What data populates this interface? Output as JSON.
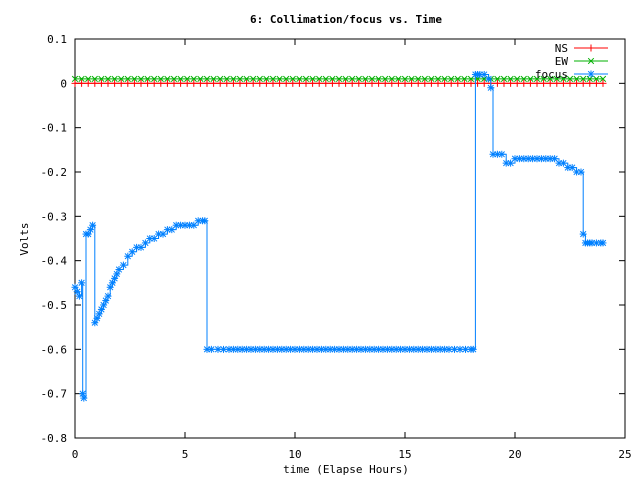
{
  "chart_data": {
    "type": "line",
    "title": "6: Collimation/focus vs. Time",
    "xlabel": "time (Elapse Hours)",
    "ylabel": "Volts",
    "xlim": [
      0,
      25
    ],
    "ylim": [
      -0.8,
      0.1
    ],
    "xticks": [
      0,
      5,
      10,
      15,
      20,
      25
    ],
    "yticks": [
      -0.8,
      -0.7,
      -0.6,
      -0.5,
      -0.4,
      -0.3,
      -0.2,
      -0.1,
      0,
      0.1
    ],
    "ytick_labels": [
      "-0.8",
      "-0.7",
      "-0.6",
      "-0.5",
      "-0.4",
      "-0.3",
      "-0.2",
      "-0.1",
      "0",
      "0.1"
    ],
    "xtick_labels": [
      "0",
      "5",
      "10",
      "15",
      "20",
      "25"
    ],
    "grid": false,
    "legend_position": "top-right",
    "series": [
      {
        "name": "NS",
        "color": "#ff0000",
        "marker": "plus",
        "x": [
          0,
          24
        ],
        "y": [
          0,
          0
        ]
      },
      {
        "name": "EW",
        "color": "#00b000",
        "marker": "x",
        "x": [
          0,
          24
        ],
        "y": [
          0.01,
          0.01
        ]
      },
      {
        "name": "focus",
        "color": "#0080ff",
        "marker": "star",
        "x": [
          0.0,
          0.1,
          0.2,
          0.3,
          0.35,
          0.4,
          0.5,
          0.6,
          0.7,
          0.8,
          0.9,
          1.0,
          1.1,
          1.2,
          1.3,
          1.4,
          1.5,
          1.6,
          1.7,
          1.8,
          1.9,
          2.0,
          2.2,
          2.4,
          2.6,
          2.8,
          3.0,
          3.2,
          3.4,
          3.6,
          3.8,
          4.0,
          4.2,
          4.4,
          4.6,
          4.8,
          5.0,
          5.2,
          5.4,
          5.6,
          5.8,
          5.9,
          6.0,
          6.2,
          6.5,
          7.0,
          8.0,
          9.0,
          10.0,
          11.0,
          12.0,
          13.0,
          14.0,
          15.0,
          16.0,
          17.0,
          17.5,
          18.0,
          18.1,
          18.2,
          18.3,
          18.4,
          18.6,
          18.8,
          18.9,
          19.0,
          19.2,
          19.4,
          19.6,
          19.8,
          20.0,
          20.2,
          20.4,
          20.6,
          20.8,
          21.0,
          21.2,
          21.4,
          21.6,
          21.8,
          22.0,
          22.2,
          22.4,
          22.6,
          22.8,
          23.0,
          23.1,
          23.2,
          23.3,
          23.4,
          23.5,
          23.7,
          23.9,
          24.0
        ],
        "y": [
          -0.46,
          -0.47,
          -0.48,
          -0.45,
          -0.7,
          -0.71,
          -0.34,
          -0.34,
          -0.33,
          -0.32,
          -0.54,
          -0.53,
          -0.52,
          -0.51,
          -0.5,
          -0.49,
          -0.48,
          -0.46,
          -0.45,
          -0.44,
          -0.43,
          -0.42,
          -0.41,
          -0.39,
          -0.38,
          -0.37,
          -0.37,
          -0.36,
          -0.35,
          -0.35,
          -0.34,
          -0.34,
          -0.33,
          -0.33,
          -0.32,
          -0.32,
          -0.32,
          -0.32,
          -0.32,
          -0.31,
          -0.31,
          -0.31,
          -0.6,
          -0.6,
          -0.6,
          -0.6,
          -0.6,
          -0.6,
          -0.6,
          -0.6,
          -0.6,
          -0.6,
          -0.6,
          -0.6,
          -0.6,
          -0.6,
          -0.6,
          -0.6,
          -0.6,
          0.02,
          0.02,
          0.02,
          0.02,
          0.01,
          -0.01,
          -0.16,
          -0.16,
          -0.16,
          -0.18,
          -0.18,
          -0.17,
          -0.17,
          -0.17,
          -0.17,
          -0.17,
          -0.17,
          -0.17,
          -0.17,
          -0.17,
          -0.17,
          -0.18,
          -0.18,
          -0.19,
          -0.19,
          -0.2,
          -0.2,
          -0.34,
          -0.36,
          -0.36,
          -0.36,
          -0.36,
          -0.36,
          -0.36,
          -0.36
        ]
      }
    ]
  }
}
